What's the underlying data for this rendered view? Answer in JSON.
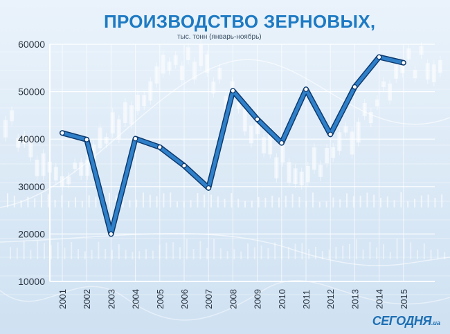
{
  "chart_data": {
    "type": "line",
    "title": "ПРОИЗВОДСТВО ЗЕРНОВЫХ,",
    "subtitle": "тыс. тонн (январь-ноябрь)",
    "categories": [
      "2001",
      "2002",
      "2003",
      "2004",
      "2005",
      "2006",
      "2007",
      "2008",
      "2009",
      "2010",
      "2011",
      "2012",
      "2013",
      "2014",
      "2015"
    ],
    "series": [
      {
        "values": [
          41300,
          39900,
          20000,
          40100,
          38300,
          34400,
          29700,
          50200,
          44200,
          39200,
          50500,
          41000,
          51000,
          57300,
          56100
        ]
      }
    ],
    "yticks": [
      10000,
      20000,
      30000,
      40000,
      50000,
      60000
    ],
    "ylim": [
      10000,
      60000
    ],
    "grid": true,
    "line_color": "#2f80c9",
    "line_outline_color": "#0d3a6e"
  },
  "branding": {
    "logo_text": "СЕГОДНЯ",
    "logo_suffix": ".ua"
  }
}
